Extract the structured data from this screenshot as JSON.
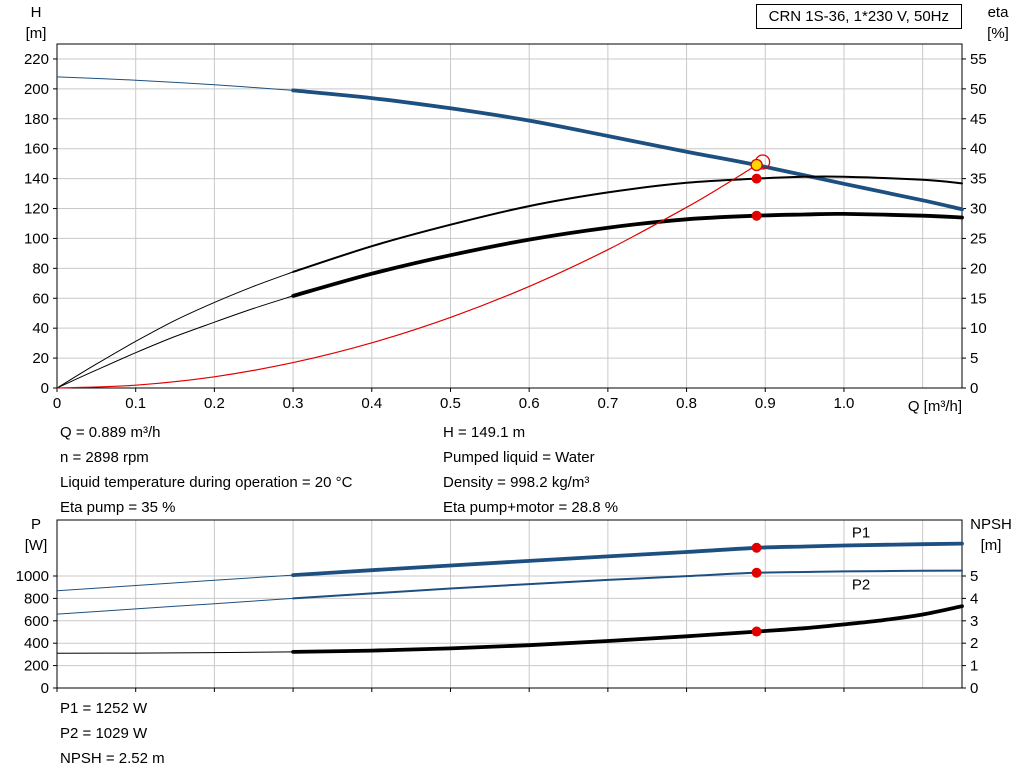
{
  "title_box": "CRN 1S-36, 1*230 V, 50Hz",
  "axis_labels": {
    "top_left_1": "H",
    "top_left_2": "[m]",
    "top_right_1": "eta",
    "top_right_2": "[%]",
    "x_label": "Q [m³/h]",
    "bottom_left_1": "P",
    "bottom_left_2": "[W]",
    "bottom_right_1": "NPSH",
    "bottom_right_2": "[m]"
  },
  "info_top_left": [
    "Q = 0.889 m³/h",
    "n = 2898 rpm",
    "Liquid temperature during operation = 20 °C",
    "Eta pump = 35 %"
  ],
  "info_top_right": [
    "H = 149.1 m",
    "Pumped liquid = Water",
    "Density = 998.2 kg/m³",
    "Eta pump+motor = 28.8 %"
  ],
  "info_bottom": [
    "P1 = 1252 W",
    "P2 = 1029 W",
    "NPSH = 2.52 m"
  ],
  "colors": {
    "blue": "#1d5080",
    "red": "#e00000",
    "yellow": "#ffd700",
    "grid": "#c9c9c9",
    "axis": "#000000",
    "black": "#000000"
  },
  "chart_data": [
    {
      "type": "line",
      "title": "CRN 1S-36, 1*230 V, 50Hz",
      "xlabel": "Q [m³/h]",
      "ylabel_left": "H [m]",
      "ylabel_right": "eta [%]",
      "xlim": [
        0,
        1.15
      ],
      "ylim_left": [
        0,
        230
      ],
      "ylim_right": [
        0,
        57.5
      ],
      "x_ticks": [
        "0",
        "0.1",
        "0.2",
        "0.3",
        "0.4",
        "0.5",
        "0.6",
        "0.7",
        "0.8",
        "0.9",
        "1.0"
      ],
      "x_grid_extra": [
        1.1
      ],
      "show_x_tick_labels": true,
      "yticks_left": [
        0,
        20,
        40,
        60,
        80,
        100,
        120,
        140,
        160,
        180,
        200,
        220
      ],
      "yticks_right": [
        0,
        5,
        10,
        15,
        20,
        25,
        30,
        35,
        40,
        45,
        50,
        55
      ],
      "series": [
        {
          "id": "h-curve",
          "name": "H (head)",
          "axis": "left",
          "color": "#1d5080",
          "width": 3.8,
          "thin_width": 1,
          "thick_from": 0.3,
          "points": [
            [
              0,
              208
            ],
            [
              0.1,
              205.8
            ],
            [
              0.2,
              202.7
            ],
            [
              0.3,
              199
            ],
            [
              0.4,
              193.8
            ],
            [
              0.5,
              187
            ],
            [
              0.6,
              178.8
            ],
            [
              0.7,
              168.5
            ],
            [
              0.8,
              158
            ],
            [
              0.889,
              149.1
            ],
            [
              1.0,
              136.5
            ],
            [
              1.1,
              125.5
            ],
            [
              1.15,
              119.5
            ]
          ]
        },
        {
          "id": "eta-pump-curve",
          "name": "Eta pump",
          "axis": "right",
          "color": "#000000",
          "width": 2,
          "thin_width": 1,
          "thick_from": 0.3,
          "points": [
            [
              0,
              0
            ],
            [
              0.05,
              4
            ],
            [
              0.1,
              7.8
            ],
            [
              0.15,
              11.3
            ],
            [
              0.2,
              14.3
            ],
            [
              0.25,
              17
            ],
            [
              0.3,
              19.4
            ],
            [
              0.4,
              23.7
            ],
            [
              0.5,
              27.3
            ],
            [
              0.6,
              30.4
            ],
            [
              0.7,
              32.7
            ],
            [
              0.8,
              34.3
            ],
            [
              0.889,
              35
            ],
            [
              0.95,
              35.3
            ],
            [
              1.0,
              35.3
            ],
            [
              1.1,
              34.8
            ],
            [
              1.15,
              34.2
            ]
          ]
        },
        {
          "id": "eta-pump-motor-curve",
          "name": "Eta pump+motor",
          "axis": "right",
          "color": "#000000",
          "width": 3.8,
          "thin_width": 1,
          "thick_from": 0.3,
          "points": [
            [
              0,
              0
            ],
            [
              0.05,
              3
            ],
            [
              0.1,
              5.9
            ],
            [
              0.15,
              8.6
            ],
            [
              0.2,
              11
            ],
            [
              0.25,
              13.3
            ],
            [
              0.3,
              15.4
            ],
            [
              0.4,
              19.1
            ],
            [
              0.5,
              22.2
            ],
            [
              0.6,
              24.8
            ],
            [
              0.7,
              26.8
            ],
            [
              0.8,
              28.2
            ],
            [
              0.889,
              28.8
            ],
            [
              0.95,
              29.0
            ],
            [
              1.0,
              29.1
            ],
            [
              1.1,
              28.8
            ],
            [
              1.15,
              28.5
            ]
          ]
        },
        {
          "id": "system-curve",
          "name": "System curve",
          "axis": "left",
          "color": "#e00000",
          "width": 1.2,
          "points": [
            [
              0,
              0
            ],
            [
              0.1,
              1.9
            ],
            [
              0.2,
              7.5
            ],
            [
              0.3,
              17
            ],
            [
              0.4,
              30.2
            ],
            [
              0.5,
              47.2
            ],
            [
              0.6,
              67.9
            ],
            [
              0.7,
              92.5
            ],
            [
              0.8,
              120.8
            ],
            [
              0.85,
              136.3
            ],
            [
              0.889,
              149.1
            ]
          ]
        }
      ],
      "markers": [
        {
          "style": "duty",
          "x": 0.889,
          "value": 149.1,
          "axis": "left"
        },
        {
          "style": "red",
          "x": 0.889,
          "value": 35,
          "axis": "right"
        },
        {
          "style": "red",
          "x": 0.889,
          "value": 28.8,
          "axis": "right"
        }
      ],
      "series_labels": []
    },
    {
      "type": "line",
      "title": "",
      "xlabel": "",
      "ylabel_left": "P [W]",
      "ylabel_right": "NPSH [m]",
      "xlim": [
        0,
        1.15
      ],
      "ylim_left": [
        0,
        1500
      ],
      "ylim_right": [
        0,
        7.5
      ],
      "x_ticks": [
        "0",
        "0.1",
        "0.2",
        "0.3",
        "0.4",
        "0.5",
        "0.6",
        "0.7",
        "0.8",
        "0.9",
        "1.0"
      ],
      "x_grid_extra": [
        1.1
      ],
      "show_x_tick_labels": false,
      "yticks_left": [
        0,
        200,
        400,
        600,
        800,
        1000
      ],
      "yticks_right": [
        0,
        1,
        2,
        3,
        4,
        5
      ],
      "series": [
        {
          "id": "p1-curve",
          "name": "P1",
          "axis": "left",
          "color": "#1d5080",
          "width": 3.8,
          "thin_width": 1,
          "thick_from": 0.3,
          "points": [
            [
              0,
              868
            ],
            [
              0.1,
              915
            ],
            [
              0.2,
              962
            ],
            [
              0.3,
              1008
            ],
            [
              0.4,
              1052
            ],
            [
              0.5,
              1094
            ],
            [
              0.6,
              1135
            ],
            [
              0.7,
              1175
            ],
            [
              0.8,
              1214
            ],
            [
              0.889,
              1252
            ],
            [
              0.95,
              1263
            ],
            [
              1.0,
              1272
            ],
            [
              1.1,
              1284
            ],
            [
              1.15,
              1289
            ]
          ]
        },
        {
          "id": "p2-curve",
          "name": "P2",
          "axis": "left",
          "color": "#1d5080",
          "width": 2,
          "thin_width": 1,
          "thick_from": 0.3,
          "points": [
            [
              0,
              660
            ],
            [
              0.1,
              706
            ],
            [
              0.2,
              753
            ],
            [
              0.3,
              800
            ],
            [
              0.4,
              845
            ],
            [
              0.5,
              888
            ],
            [
              0.6,
              928
            ],
            [
              0.7,
              965
            ],
            [
              0.8,
              999
            ],
            [
              0.889,
              1029
            ],
            [
              0.95,
              1036
            ],
            [
              1.0,
              1041
            ],
            [
              1.1,
              1046
            ],
            [
              1.15,
              1048
            ]
          ]
        },
        {
          "id": "npsh-curve",
          "name": "NPSH",
          "axis": "right",
          "color": "#000000",
          "width": 3.8,
          "thin_width": 1,
          "thick_from": 0.3,
          "points": [
            [
              0,
              1.55
            ],
            [
              0.1,
              1.56
            ],
            [
              0.2,
              1.58
            ],
            [
              0.3,
              1.61
            ],
            [
              0.4,
              1.67
            ],
            [
              0.5,
              1.77
            ],
            [
              0.6,
              1.91
            ],
            [
              0.7,
              2.1
            ],
            [
              0.8,
              2.31
            ],
            [
              0.889,
              2.52
            ],
            [
              0.95,
              2.67
            ],
            [
              1.0,
              2.84
            ],
            [
              1.05,
              3.03
            ],
            [
              1.1,
              3.28
            ],
            [
              1.15,
              3.65
            ]
          ]
        }
      ],
      "markers": [
        {
          "style": "red",
          "x": 0.889,
          "value": 1252,
          "axis": "left"
        },
        {
          "style": "red",
          "x": 0.889,
          "value": 1029,
          "axis": "left"
        },
        {
          "style": "red",
          "x": 0.889,
          "value": 2.52,
          "axis": "right"
        }
      ],
      "series_labels": [
        {
          "text": "P1",
          "x": 1.01,
          "y": 1345,
          "axis": "left",
          "color": "#1d5080"
        },
        {
          "text": "P2",
          "x": 1.01,
          "y": 880,
          "axis": "left",
          "color": "#1d5080"
        }
      ]
    }
  ]
}
